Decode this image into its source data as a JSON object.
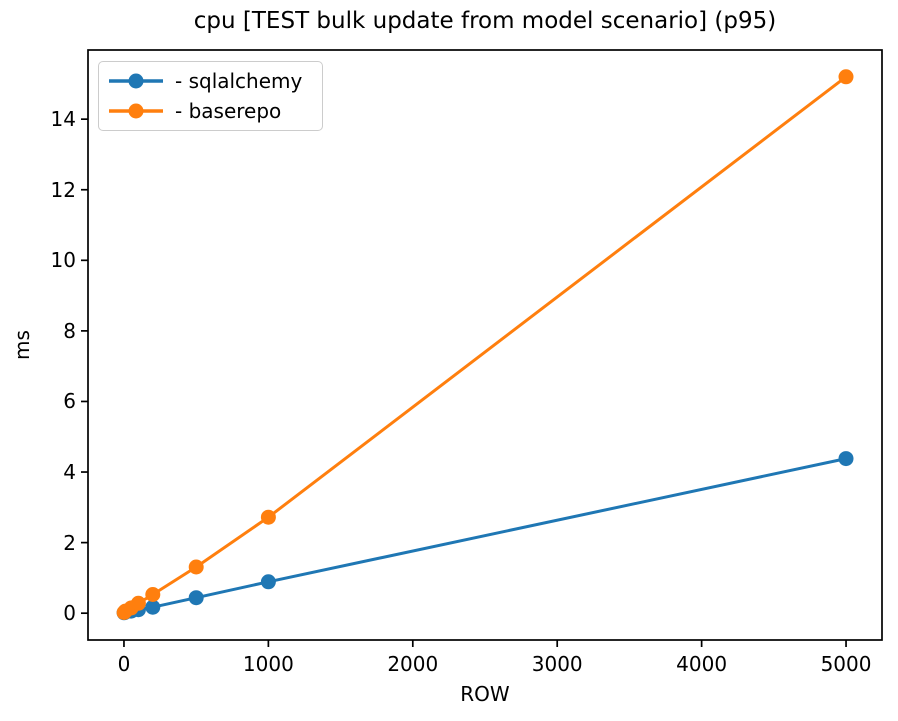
{
  "chart_data": {
    "type": "line",
    "title": "cpu [TEST bulk update from model scenario] (p95)",
    "xlabel": "ROW",
    "ylabel": "ms",
    "x": [
      1,
      10,
      50,
      100,
      200,
      500,
      1000,
      5000
    ],
    "series": [
      {
        "name": "- sqlalchemy",
        "color": "#1f77b4",
        "values": [
          0.01,
          0.03,
          0.06,
          0.1,
          0.17,
          0.44,
          0.89,
          4.38
        ]
      },
      {
        "name": "- baserepo",
        "color": "#ff7f0e",
        "values": [
          0.02,
          0.06,
          0.15,
          0.28,
          0.53,
          1.31,
          2.72,
          15.2
        ]
      }
    ],
    "x_ticks": [
      0,
      1000,
      2000,
      3000,
      4000,
      5000
    ],
    "y_ticks": [
      0,
      2,
      4,
      6,
      8,
      10,
      12,
      14
    ],
    "xlim": [
      -249,
      5249
    ],
    "ylim": [
      -0.76,
      15.96
    ],
    "grid": false,
    "legend_position": "upper left",
    "marker": "o"
  }
}
